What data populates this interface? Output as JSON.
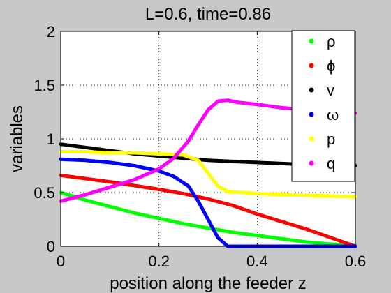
{
  "chart_data": {
    "type": "line",
    "title": "L=0.6, time=0.86",
    "xlabel": "position along the feeder z",
    "ylabel": "variables",
    "xlim": [
      0,
      0.6
    ],
    "ylim": [
      0,
      2
    ],
    "xticks": [
      "0",
      "0.2",
      "0.4",
      "0.6"
    ],
    "yticks": [
      "0",
      "0.5",
      "1",
      "1.5",
      "2"
    ],
    "grid": true,
    "legend_position": "top-right",
    "series": [
      {
        "name": "ρ",
        "color": "#00ff00",
        "x": [
          0,
          0.05,
          0.1,
          0.15,
          0.2,
          0.25,
          0.3,
          0.35,
          0.4,
          0.45,
          0.5,
          0.55,
          0.6
        ],
        "y": [
          0.5,
          0.43,
          0.37,
          0.31,
          0.26,
          0.21,
          0.17,
          0.13,
          0.1,
          0.07,
          0.04,
          0.02,
          0.0
        ]
      },
      {
        "name": "ϕ",
        "color": "#ff0000",
        "x": [
          0,
          0.1,
          0.2,
          0.25,
          0.3,
          0.35,
          0.4,
          0.45,
          0.5,
          0.55,
          0.6
        ],
        "y": [
          0.66,
          0.6,
          0.53,
          0.49,
          0.44,
          0.38,
          0.3,
          0.23,
          0.16,
          0.08,
          0.0
        ]
      },
      {
        "name": "v",
        "color": "#000000",
        "x": [
          0,
          0.05,
          0.1,
          0.15,
          0.2,
          0.25,
          0.3,
          0.35,
          0.4,
          0.45,
          0.5,
          0.55,
          0.6
        ],
        "y": [
          0.95,
          0.92,
          0.89,
          0.86,
          0.84,
          0.82,
          0.8,
          0.79,
          0.78,
          0.77,
          0.76,
          0.755,
          0.75
        ]
      },
      {
        "name": "ω",
        "color": "#0000ff",
        "x": [
          0,
          0.05,
          0.1,
          0.15,
          0.2,
          0.23,
          0.26,
          0.28,
          0.3,
          0.32,
          0.34,
          0.4,
          0.5,
          0.6
        ],
        "y": [
          0.81,
          0.8,
          0.78,
          0.75,
          0.7,
          0.65,
          0.56,
          0.42,
          0.25,
          0.08,
          0.0,
          0.0,
          0.0,
          0.0
        ]
      },
      {
        "name": "p",
        "color": "#ffff00",
        "x": [
          0,
          0.05,
          0.1,
          0.15,
          0.2,
          0.25,
          0.28,
          0.3,
          0.32,
          0.34,
          0.37,
          0.4,
          0.5,
          0.6
        ],
        "y": [
          0.88,
          0.88,
          0.87,
          0.87,
          0.86,
          0.85,
          0.8,
          0.68,
          0.56,
          0.51,
          0.5,
          0.49,
          0.475,
          0.46
        ]
      },
      {
        "name": "q",
        "color": "#ff00ff",
        "x": [
          0,
          0.05,
          0.1,
          0.15,
          0.2,
          0.23,
          0.26,
          0.28,
          0.3,
          0.32,
          0.34,
          0.36,
          0.4,
          0.45,
          0.5,
          0.55,
          0.6
        ],
        "y": [
          0.42,
          0.48,
          0.55,
          0.62,
          0.72,
          0.82,
          0.98,
          1.13,
          1.27,
          1.35,
          1.36,
          1.34,
          1.32,
          1.29,
          1.27,
          1.25,
          1.24
        ]
      }
    ]
  }
}
